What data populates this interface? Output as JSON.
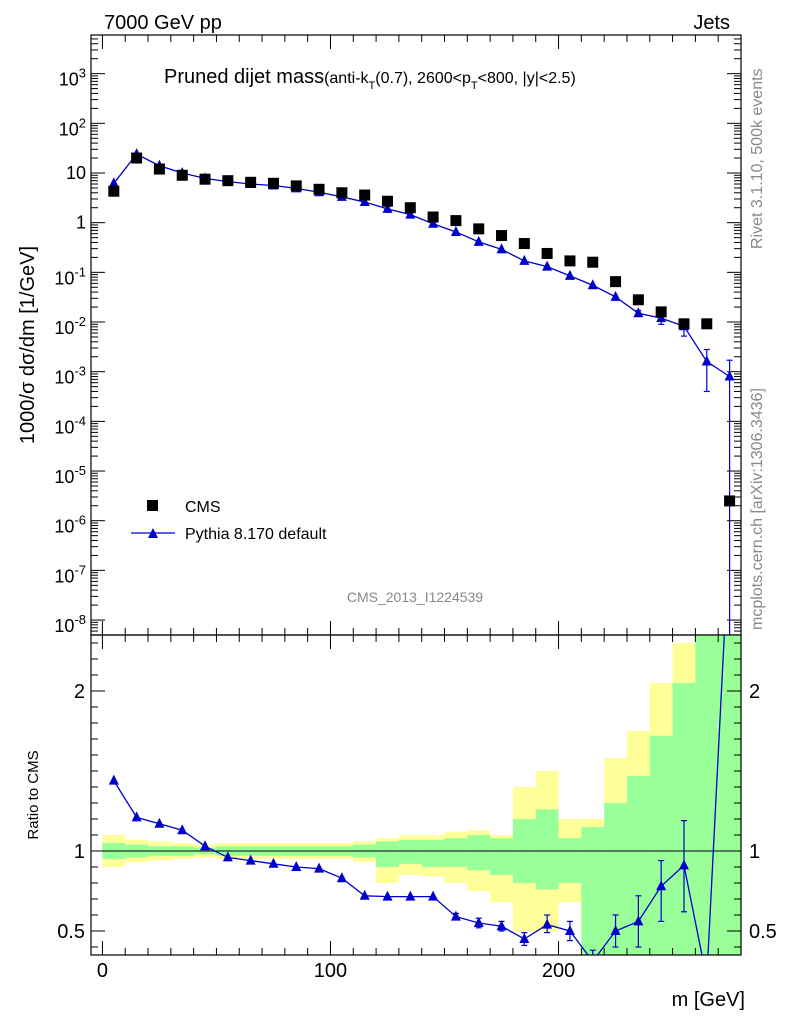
{
  "header": {
    "left": "7000 GeV pp",
    "right": "Jets"
  },
  "title": {
    "main": "Pruned dijet mass",
    "detail_pre": "(anti-k",
    "detail_sub1": "T",
    "detail_mid": "(0.7), 2600<p",
    "detail_sub2": "T",
    "detail_post": "<800, |y|<2.5)"
  },
  "side_labels": {
    "rivet": "Rivet 3.1.10,  500k events",
    "mcplots": "mcplots.cern.ch [arXiv:1306.3436]"
  },
  "watermark": "CMS_2013_I1224539",
  "colors": {
    "data": "#000000",
    "mc": "#0000cc",
    "band_inner": "#99ff99",
    "band_outer": "#ffff99"
  },
  "chart_data": [
    {
      "type": "scatter",
      "panel": "main",
      "ylabel": "1000/σ dσ/dm [1/GeV]",
      "log_y": true,
      "xlim": [
        -5,
        280
      ],
      "ylim": [
        5e-09,
        6000
      ],
      "y_tick_labels": [
        "10^-8",
        "10^-7",
        "10^-6",
        "10^-5",
        "10^-4",
        "10^-3",
        "10^-2",
        "10^-1",
        "1",
        "10",
        "10^2",
        "10^3"
      ],
      "legend_position": "bottom-left",
      "series": [
        {
          "name": "CMS",
          "marker": "square",
          "x": [
            5,
            15,
            25,
            35,
            45,
            55,
            65,
            75,
            85,
            95,
            105,
            115,
            125,
            135,
            145,
            155,
            165,
            175,
            185,
            195,
            205,
            215,
            225,
            235,
            245,
            255,
            265,
            275
          ],
          "y": [
            4.3,
            20,
            12,
            9.0,
            7.5,
            7.0,
            6.5,
            6.2,
            5.5,
            4.7,
            4.0,
            3.6,
            2.7,
            2.0,
            1.3,
            1.1,
            0.75,
            0.55,
            0.38,
            0.24,
            0.17,
            0.16,
            0.065,
            0.028,
            0.016,
            0.0092,
            0.0092,
            2.5e-06
          ]
        },
        {
          "name": "Pythia 8.170 default",
          "marker": "triangle",
          "x": [
            5,
            15,
            25,
            35,
            45,
            55,
            65,
            75,
            85,
            95,
            105,
            115,
            125,
            135,
            145,
            155,
            165,
            175,
            185,
            195,
            205,
            215,
            225,
            235,
            245,
            255,
            265,
            275
          ],
          "y": [
            6.2,
            24,
            14,
            10.0,
            7.8,
            6.7,
            6.0,
            5.6,
            4.9,
            4.1,
            3.3,
            2.6,
            1.9,
            1.45,
            0.95,
            0.65,
            0.41,
            0.29,
            0.17,
            0.13,
            0.085,
            0.055,
            0.032,
            0.015,
            0.012,
            0.0082,
            0.0016,
            0.0008
          ],
          "yerr_low": [
            0,
            0,
            0,
            0,
            0,
            0,
            0,
            0,
            0,
            0,
            0,
            0,
            0,
            0,
            0,
            0,
            0,
            0,
            0,
            0,
            0,
            0,
            0,
            0.002,
            0.003,
            0.003,
            0.0012,
            0.0008
          ],
          "yerr_high": [
            0,
            0,
            0,
            0,
            0,
            0,
            0,
            0,
            0,
            0,
            0,
            0,
            0,
            0,
            0,
            0,
            0,
            0,
            0,
            0,
            0,
            0,
            0,
            0.002,
            0.003,
            0.003,
            0.0012,
            0.0009
          ]
        }
      ]
    },
    {
      "type": "line",
      "panel": "ratio",
      "xlabel": "m [GeV]",
      "ylabel": "Ratio to CMS",
      "xlim": [
        -5,
        280
      ],
      "ylim": [
        0.35,
        2.35
      ],
      "x_ticks": [
        0,
        100,
        200
      ],
      "y_ticks": [
        0.5,
        1,
        2
      ],
      "bins": [
        {
          "lo": 0,
          "hi": 10,
          "in_lo": 0.95,
          "in_hi": 1.05,
          "out_lo": 0.9,
          "out_hi": 1.1
        },
        {
          "lo": 10,
          "hi": 20,
          "in_lo": 0.96,
          "in_hi": 1.04,
          "out_lo": 0.93,
          "out_hi": 1.07
        },
        {
          "lo": 20,
          "hi": 30,
          "in_lo": 0.97,
          "in_hi": 1.03,
          "out_lo": 0.94,
          "out_hi": 1.06
        },
        {
          "lo": 30,
          "hi": 40,
          "in_lo": 0.97,
          "in_hi": 1.03,
          "out_lo": 0.95,
          "out_hi": 1.05
        },
        {
          "lo": 40,
          "hi": 50,
          "in_lo": 0.98,
          "in_hi": 1.02,
          "out_lo": 0.96,
          "out_hi": 1.04
        },
        {
          "lo": 50,
          "hi": 60,
          "in_lo": 0.97,
          "in_hi": 1.03,
          "out_lo": 0.95,
          "out_hi": 1.05
        },
        {
          "lo": 60,
          "hi": 70,
          "in_lo": 0.97,
          "in_hi": 1.03,
          "out_lo": 0.95,
          "out_hi": 1.05
        },
        {
          "lo": 70,
          "hi": 80,
          "in_lo": 0.97,
          "in_hi": 1.03,
          "out_lo": 0.95,
          "out_hi": 1.05
        },
        {
          "lo": 80,
          "hi": 90,
          "in_lo": 0.97,
          "in_hi": 1.03,
          "out_lo": 0.95,
          "out_hi": 1.05
        },
        {
          "lo": 90,
          "hi": 100,
          "in_lo": 0.97,
          "in_hi": 1.03,
          "out_lo": 0.95,
          "out_hi": 1.05
        },
        {
          "lo": 100,
          "hi": 110,
          "in_lo": 0.97,
          "in_hi": 1.03,
          "out_lo": 0.95,
          "out_hi": 1.05
        },
        {
          "lo": 110,
          "hi": 120,
          "in_lo": 0.96,
          "in_hi": 1.04,
          "out_lo": 0.93,
          "out_hi": 1.06
        },
        {
          "lo": 120,
          "hi": 130,
          "in_lo": 0.9,
          "in_hi": 1.06,
          "out_lo": 0.8,
          "out_hi": 1.08
        },
        {
          "lo": 130,
          "hi": 140,
          "in_lo": 0.92,
          "in_hi": 1.07,
          "out_lo": 0.85,
          "out_hi": 1.1
        },
        {
          "lo": 140,
          "hi": 150,
          "in_lo": 0.9,
          "in_hi": 1.07,
          "out_lo": 0.84,
          "out_hi": 1.1
        },
        {
          "lo": 150,
          "hi": 160,
          "in_lo": 0.9,
          "in_hi": 1.08,
          "out_lo": 0.8,
          "out_hi": 1.12
        },
        {
          "lo": 160,
          "hi": 170,
          "in_lo": 0.88,
          "in_hi": 1.1,
          "out_lo": 0.75,
          "out_hi": 1.13
        },
        {
          "lo": 170,
          "hi": 180,
          "in_lo": 0.85,
          "in_hi": 1.08,
          "out_lo": 0.68,
          "out_hi": 1.1
        },
        {
          "lo": 180,
          "hi": 190,
          "in_lo": 0.8,
          "in_hi": 1.2,
          "out_lo": 0.5,
          "out_hi": 1.4
        },
        {
          "lo": 190,
          "hi": 200,
          "in_lo": 0.76,
          "in_hi": 1.26,
          "out_lo": 0.5,
          "out_hi": 1.5
        },
        {
          "lo": 200,
          "hi": 210,
          "in_lo": 0.8,
          "in_hi": 1.08,
          "out_lo": 0.68,
          "out_hi": 1.2
        },
        {
          "lo": 210,
          "hi": 220,
          "in_lo": 0.35,
          "in_hi": 1.15,
          "out_lo": 0.35,
          "out_hi": 1.2
        },
        {
          "lo": 220,
          "hi": 230,
          "in_lo": 0.35,
          "in_hi": 1.3,
          "out_lo": 0.35,
          "out_hi": 1.58
        },
        {
          "lo": 230,
          "hi": 240,
          "in_lo": 0.35,
          "in_hi": 1.47,
          "out_lo": 0.35,
          "out_hi": 1.75
        },
        {
          "lo": 240,
          "hi": 250,
          "in_lo": 0.35,
          "in_hi": 1.72,
          "out_lo": 0.35,
          "out_hi": 2.05
        },
        {
          "lo": 250,
          "hi": 260,
          "in_lo": 0.35,
          "in_hi": 2.05,
          "out_lo": 0.35,
          "out_hi": 2.3
        },
        {
          "lo": 260,
          "hi": 270,
          "in_lo": 0.35,
          "in_hi": 2.35,
          "out_lo": 0.35,
          "out_hi": 2.35
        },
        {
          "lo": 270,
          "hi": 280,
          "in_lo": 0.35,
          "in_hi": 2.35,
          "out_lo": 0.35,
          "out_hi": 2.35
        }
      ],
      "series": [
        {
          "name": "Pythia 8.170 default",
          "x": [
            5,
            15,
            25,
            35,
            45,
            55,
            65,
            75,
            85,
            95,
            105,
            115,
            125,
            135,
            145,
            155,
            165,
            175,
            185,
            195,
            205,
            215,
            225,
            235,
            245,
            255,
            265,
            275
          ],
          "y": [
            1.44,
            1.21,
            1.17,
            1.13,
            1.03,
            0.96,
            0.94,
            0.92,
            0.9,
            0.89,
            0.83,
            0.72,
            0.715,
            0.715,
            0.715,
            0.59,
            0.55,
            0.53,
            0.45,
            0.54,
            0.5,
            0.31,
            0.5,
            0.56,
            0.78,
            0.91,
            0.2,
            3.0
          ],
          "yerr_low": [
            0,
            0,
            0,
            0,
            0,
            0,
            0,
            0,
            0,
            0,
            0,
            0,
            0,
            0,
            0,
            0.02,
            0.03,
            0.03,
            0.04,
            0.05,
            0.06,
            0.07,
            0.1,
            0.16,
            0.22,
            0.29,
            0,
            0
          ],
          "yerr_high": [
            0,
            0,
            0,
            0,
            0,
            0,
            0,
            0,
            0,
            0,
            0,
            0,
            0,
            0,
            0,
            0.02,
            0.03,
            0.03,
            0.04,
            0.06,
            0.06,
            0.07,
            0.1,
            0.16,
            0.16,
            0.28,
            0,
            0
          ]
        }
      ]
    }
  ]
}
